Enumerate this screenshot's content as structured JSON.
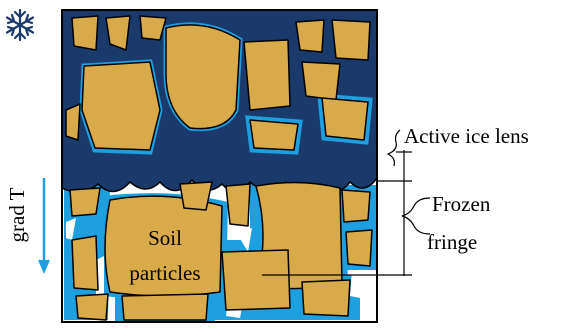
{
  "labels": {
    "active_ice_lens": "Active ice lens",
    "frozen_fringe": [
      "Frozen",
      "fringe"
    ],
    "soil_particles": [
      "Soil",
      "particles"
    ],
    "gradient": "grad T"
  }
}
